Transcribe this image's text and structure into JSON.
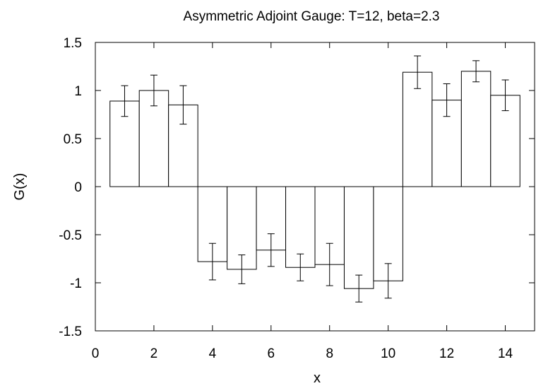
{
  "chart_data": {
    "type": "bar",
    "title": "Asymmetric Adjoint Gauge: T=12, beta=2.3",
    "xlabel": "x",
    "ylabel": "G(x)",
    "xlim": [
      0,
      15
    ],
    "ylim": [
      -1.5,
      1.5
    ],
    "x_ticks": [
      "0",
      "2",
      "4",
      "6",
      "8",
      "10",
      "12",
      "14"
    ],
    "x_tick_values": [
      0,
      2,
      4,
      6,
      8,
      10,
      12,
      14
    ],
    "y_ticks": [
      "1.5",
      "1",
      "0.5",
      "0",
      "-0.5",
      "-1",
      "-1.5"
    ],
    "y_tick_values": [
      1.5,
      1,
      0.5,
      0,
      -0.5,
      -1,
      -1.5
    ],
    "grid": false,
    "x": [
      1,
      2,
      3,
      4,
      5,
      6,
      7,
      8,
      9,
      10,
      11,
      12,
      13,
      14
    ],
    "values": [
      0.89,
      1.0,
      0.85,
      -0.78,
      -0.86,
      -0.66,
      -0.84,
      -0.81,
      -1.06,
      -0.98,
      1.19,
      0.9,
      1.2,
      0.95
    ],
    "errors": [
      0.16,
      0.16,
      0.2,
      0.19,
      0.15,
      0.17,
      0.14,
      0.22,
      0.14,
      0.18,
      0.17,
      0.17,
      0.11,
      0.16
    ],
    "bar_color": "#ffffff",
    "edge_color": "#000000"
  }
}
